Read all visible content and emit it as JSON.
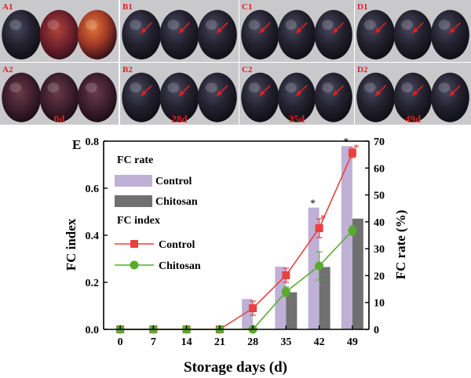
{
  "photo_panels": [
    {
      "id": "A1",
      "row": 0,
      "col": 0,
      "day_label": ""
    },
    {
      "id": "B1",
      "row": 0,
      "col": 1,
      "day_label": ""
    },
    {
      "id": "C1",
      "row": 0,
      "col": 2,
      "day_label": ""
    },
    {
      "id": "D1",
      "row": 0,
      "col": 3,
      "day_label": ""
    },
    {
      "id": "A2",
      "row": 1,
      "col": 0,
      "day_label": "0d"
    },
    {
      "id": "B2",
      "row": 1,
      "col": 1,
      "day_label": "28d"
    },
    {
      "id": "C2",
      "row": 1,
      "col": 2,
      "day_label": "35d"
    },
    {
      "id": "D2",
      "row": 1,
      "col": 3,
      "day_label": "49d"
    }
  ],
  "colors": {
    "bar_control": "#bfb0d6",
    "bar_chitosan": "#707070",
    "line_control": "#e8413f",
    "line_chitosan": "#5aaa2e",
    "label_red": "#e02020",
    "photo_bg": "#c9c9cc"
  },
  "chart_data": {
    "type": "bar+line",
    "panel_label": "E",
    "x": [
      0,
      7,
      14,
      21,
      28,
      35,
      42,
      49
    ],
    "xlabel": "Storage days (d)",
    "ylabel_left": "FC index",
    "ylabel_right": "FC rate (%)",
    "ylim_left": [
      0,
      0.8
    ],
    "ylim_right": [
      0,
      70
    ],
    "yticks_left": [
      "0.0",
      "0.2",
      "0.4",
      "0.6",
      "0.8"
    ],
    "yticks_right": [
      "0",
      "10",
      "20",
      "30",
      "40",
      "50",
      "60",
      "70"
    ],
    "legend_rate_title": "FC rate",
    "legend_index_title": "FC index",
    "bars": [
      {
        "name": "Control",
        "values": [
          0,
          0,
          0,
          0,
          11.3,
          23.3,
          45.3,
          68.2
        ]
      },
      {
        "name": "Chitosan",
        "values": [
          0,
          0,
          0,
          0,
          0,
          13.8,
          23.2,
          41.2
        ]
      }
    ],
    "lines": [
      {
        "name": "Control",
        "values": [
          0,
          0,
          0,
          0,
          0.09,
          0.23,
          0.43,
          0.75
        ],
        "errors": [
          0,
          0,
          0,
          0,
          0.03,
          0.03,
          0.04,
          0.02
        ]
      },
      {
        "name": "Chitosan",
        "values": [
          0,
          0,
          0,
          0,
          0,
          0.16,
          0.27,
          0.42
        ],
        "errors": [
          0,
          0,
          0,
          0,
          0,
          0.02,
          0.06,
          0.02
        ]
      }
    ],
    "significance": [
      {
        "x": 42,
        "text": "*"
      },
      {
        "x": 49,
        "text": "*"
      }
    ]
  }
}
